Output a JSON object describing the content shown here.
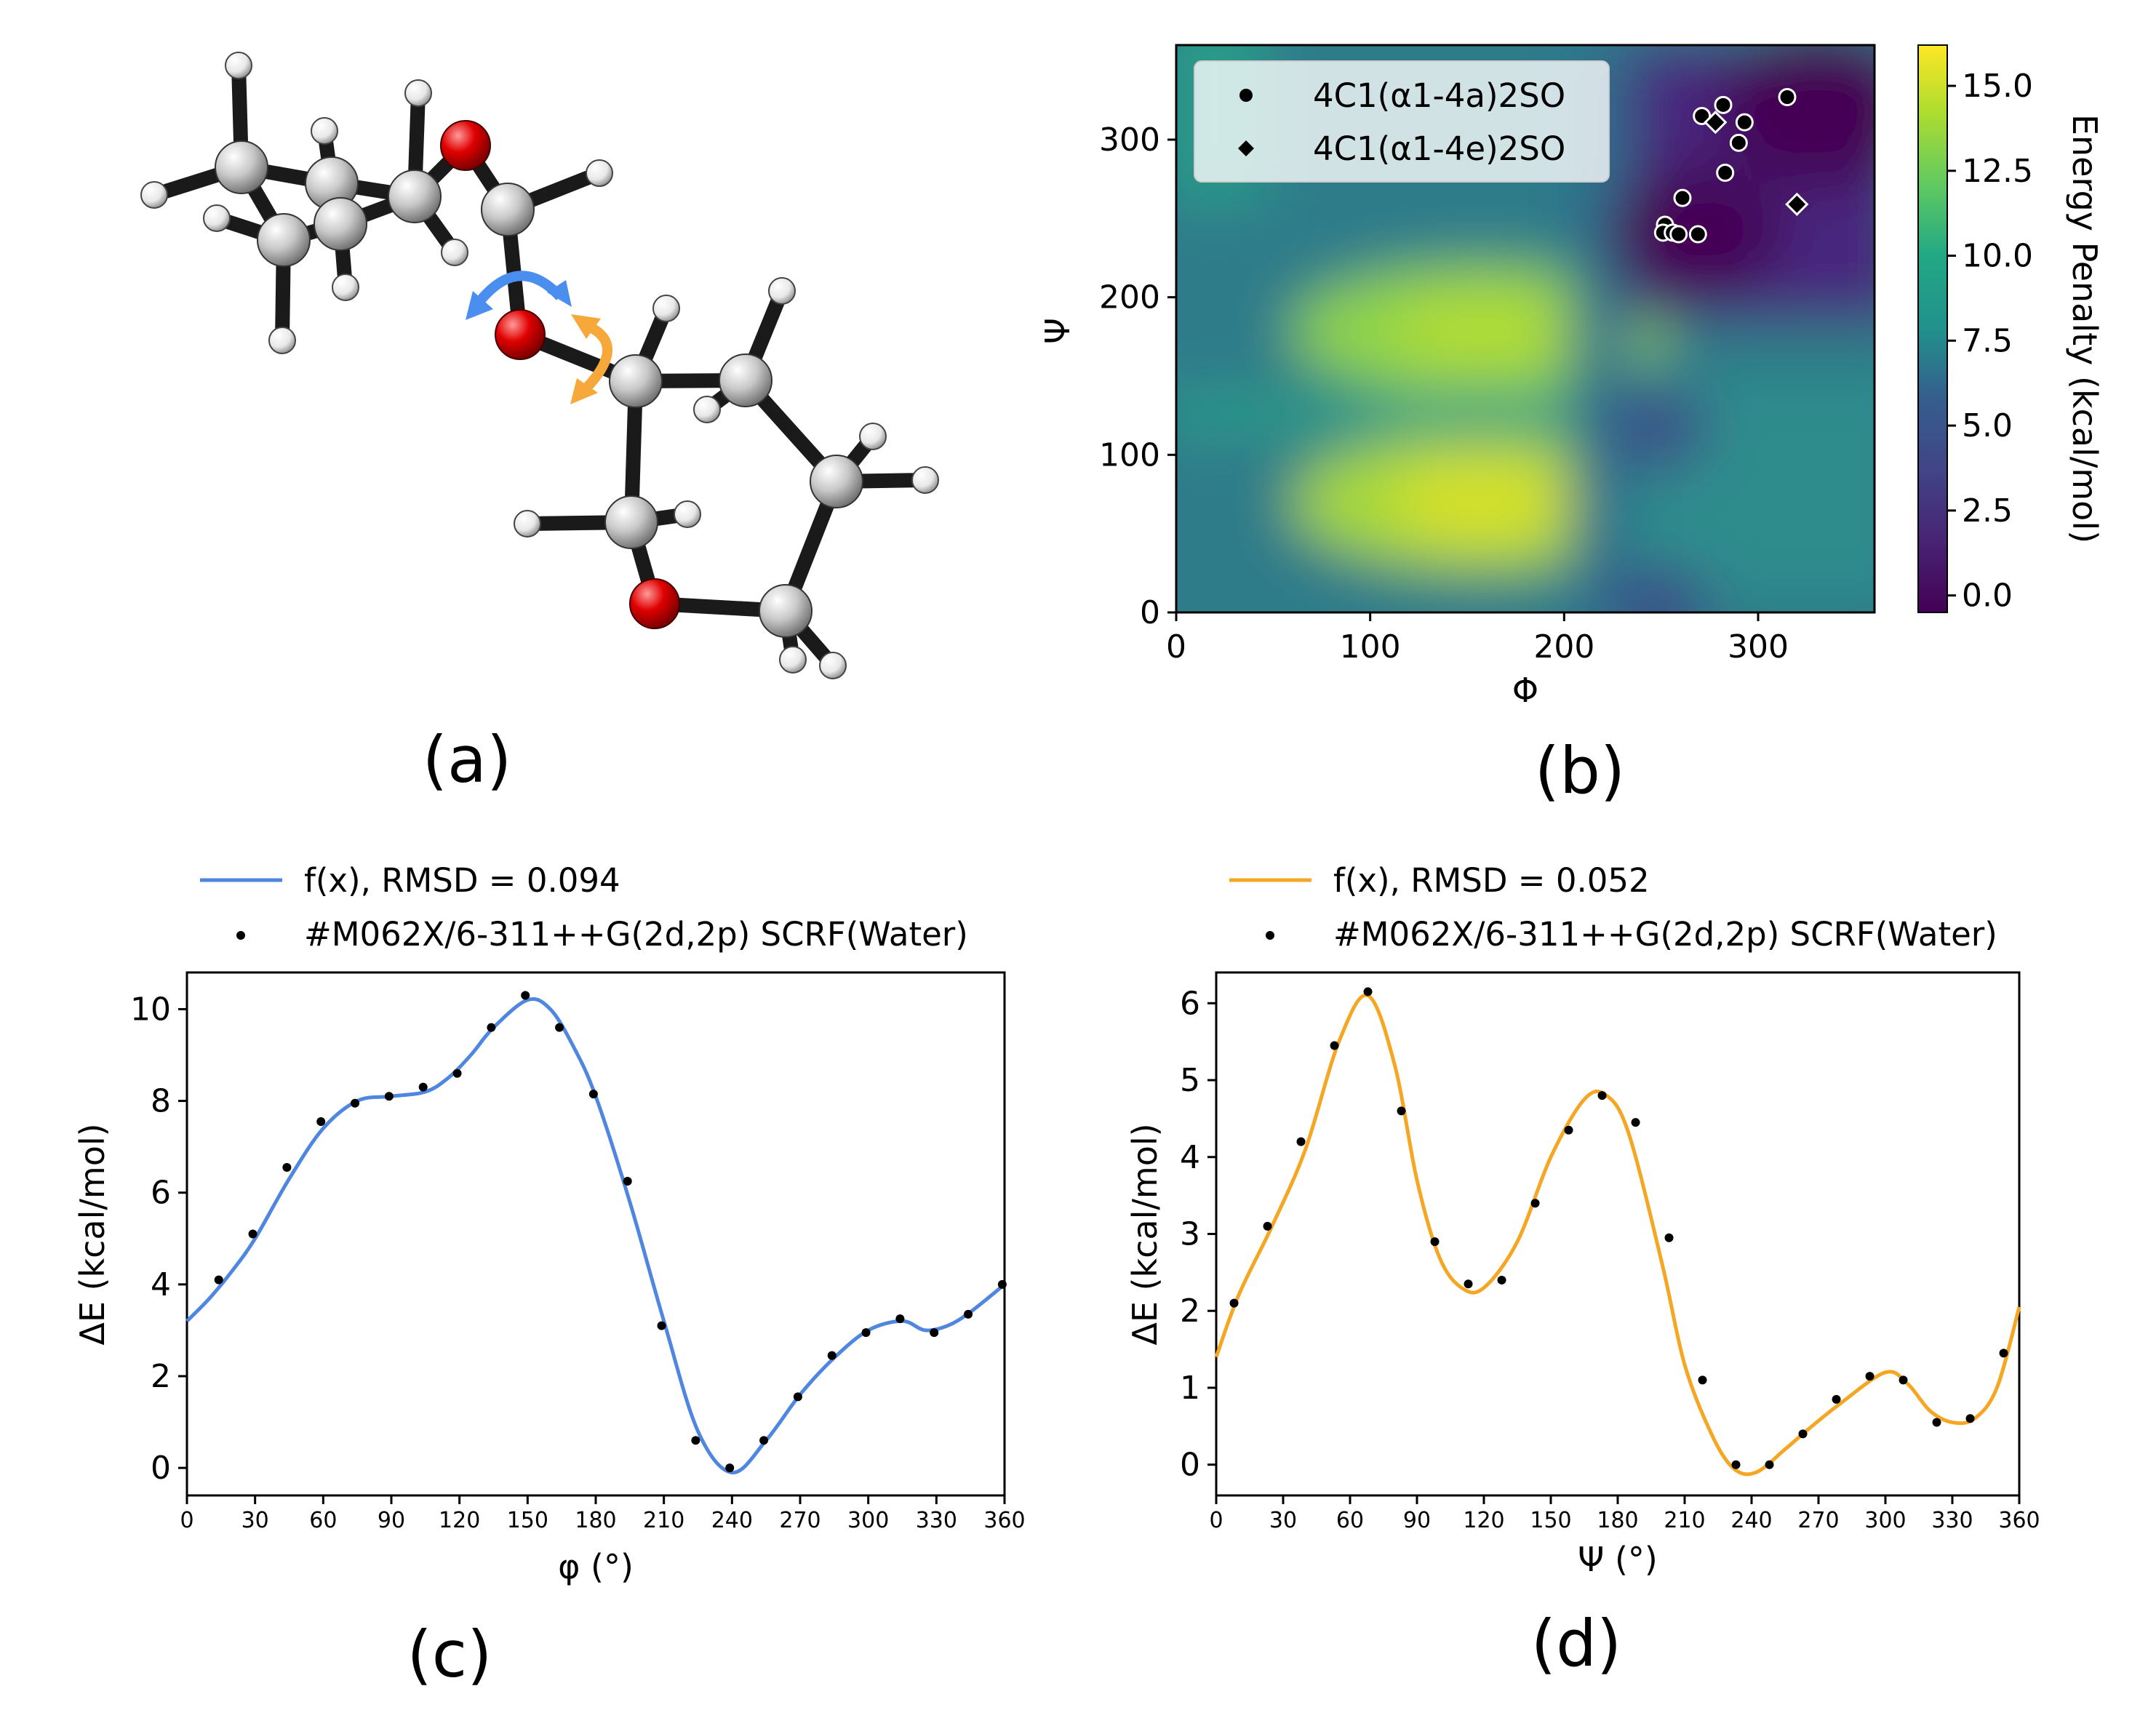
{
  "panels": {
    "a": "(a)",
    "b": "(b)",
    "c": "(c)",
    "d": "(d)"
  },
  "colors": {
    "phi_curve": "#4f86e0",
    "psi_curve": "#f5a623",
    "oxygen": "#e00000",
    "carbon": "#c8c8c8",
    "bond": "#1a1a1a",
    "arrow_blue": "#4a8ef0",
    "arrow_orange": "#f6a83a"
  },
  "molecule": {
    "icon": "molecule-3d-ball-and-stick"
  },
  "chart_data": [
    {
      "id": "b",
      "type": "heatmap",
      "xlabel": "Φ",
      "ylabel": "Ψ",
      "xlim": [
        0,
        360
      ],
      "ylim": [
        0,
        360
      ],
      "xticks": [
        "0",
        "100",
        "200",
        "300"
      ],
      "yticks": [
        "0",
        "100",
        "200",
        "300"
      ],
      "colorbar": {
        "label": "Energy Penalty (kcal/mol)",
        "range": [
          -0.5,
          16.2
        ],
        "ticks": [
          "0.0",
          "2.5",
          "5.0",
          "7.5",
          "10.0",
          "12.5",
          "15.0"
        ],
        "colormap": "viridis"
      },
      "legend": {
        "placement": "top-left",
        "entries": [
          "4C1(α1-4a)2SO",
          "4C1(α1-4e)2SO"
        ]
      },
      "series": [
        {
          "name": "4C1(α1-4a)2SO",
          "marker": "circle",
          "points": [
            [
              315,
              327
            ],
            [
              282,
              322
            ],
            [
              271,
              315
            ],
            [
              293,
              311
            ],
            [
              290,
              298
            ],
            [
              283,
              279
            ],
            [
              261,
              263
            ],
            [
              252,
              246
            ],
            [
              251,
              241
            ],
            [
              256,
              241
            ],
            [
              259,
              240
            ],
            [
              269,
              240
            ]
          ]
        },
        {
          "name": "4C1(α1-4e)2SO",
          "marker": "diamond",
          "points": [
            [
              278,
              311
            ],
            [
              320,
              259
            ]
          ]
        }
      ]
    },
    {
      "id": "c",
      "type": "line",
      "xlabel": "φ (°)",
      "ylabel": "ΔE (kcal/mol)",
      "xlim": [
        0,
        360
      ],
      "ylim": [
        -0.6,
        10.8
      ],
      "xticks": [
        "0",
        "30",
        "60",
        "90",
        "120",
        "150",
        "180",
        "210",
        "240",
        "270",
        "300",
        "330",
        "360"
      ],
      "yticks": [
        "0",
        "2",
        "4",
        "6",
        "8",
        "10"
      ],
      "legend": {
        "placement": "top",
        "entries": [
          "f(x), RMSD = 0.094",
          "#M062X/6-311++G(2d,2p) SCRF(Water)"
        ]
      },
      "series": [
        {
          "name": "f(x), RMSD = 0.094",
          "x": [
            0,
            10,
            20,
            30,
            45,
            60,
            75,
            90,
            105,
            115,
            125,
            135,
            150,
            160,
            170,
            180,
            195,
            210,
            225,
            240,
            255,
            270,
            285,
            300,
            315,
            325,
            335,
            345,
            360
          ],
          "y": [
            3.2,
            3.7,
            4.3,
            5.0,
            6.3,
            7.4,
            8.0,
            8.1,
            8.2,
            8.5,
            9.0,
            9.6,
            10.2,
            10.0,
            9.2,
            8.1,
            5.8,
            3.2,
            0.8,
            -0.1,
            0.6,
            1.6,
            2.4,
            3.0,
            3.2,
            3.0,
            3.1,
            3.4,
            4.0
          ]
        },
        {
          "name": "#M062X/6-311++G(2d,2p) SCRF(Water)",
          "x": [
            14,
            29,
            44,
            59,
            74,
            89,
            104,
            119,
            134,
            149,
            164,
            179,
            194,
            209,
            224,
            239,
            254,
            269,
            284,
            299,
            314,
            329,
            344,
            359
          ],
          "y": [
            4.1,
            5.1,
            6.55,
            7.55,
            7.95,
            8.1,
            8.3,
            8.6,
            9.6,
            10.3,
            9.6,
            8.15,
            6.25,
            3.1,
            0.6,
            0.0,
            0.6,
            1.55,
            2.45,
            2.95,
            3.25,
            2.95,
            3.35,
            4.0
          ]
        }
      ]
    },
    {
      "id": "d",
      "type": "line",
      "xlabel": "Ψ (°)",
      "ylabel": "ΔE (kcal/mol)",
      "xlim": [
        0,
        360
      ],
      "ylim": [
        -0.4,
        6.4
      ],
      "xticks": [
        "0",
        "30",
        "60",
        "90",
        "120",
        "150",
        "180",
        "210",
        "240",
        "270",
        "300",
        "330",
        "360"
      ],
      "yticks": [
        "0",
        "1",
        "2",
        "3",
        "4",
        "5",
        "6"
      ],
      "legend": {
        "placement": "top",
        "entries": [
          "f(x), RMSD = 0.052",
          "#M062X/6-311++G(2d,2p) SCRF(Water)"
        ]
      },
      "series": [
        {
          "name": "f(x), RMSD = 0.052",
          "x": [
            0,
            10,
            25,
            40,
            55,
            68,
            80,
            90,
            100,
            110,
            120,
            135,
            150,
            165,
            175,
            185,
            200,
            210,
            222,
            232,
            242,
            255,
            265,
            280,
            300,
            310,
            320,
            330,
            340,
            350,
            360
          ],
          "y": [
            1.4,
            2.2,
            3.1,
            4.1,
            5.5,
            6.1,
            5.2,
            3.7,
            2.7,
            2.3,
            2.3,
            2.9,
            4.0,
            4.75,
            4.8,
            4.3,
            2.6,
            1.3,
            0.4,
            -0.05,
            -0.1,
            0.2,
            0.45,
            0.8,
            1.2,
            1.05,
            0.7,
            0.55,
            0.6,
            1.0,
            2.05
          ]
        },
        {
          "name": "#M062X/6-311++G(2d,2p) SCRF(Water)",
          "x": [
            8,
            23,
            38,
            53,
            68,
            83,
            98,
            113,
            128,
            143,
            158,
            173,
            188,
            203,
            218,
            233,
            248,
            263,
            278,
            293,
            308,
            323,
            338,
            353
          ],
          "y": [
            2.1,
            3.1,
            4.2,
            5.45,
            6.15,
            4.6,
            2.9,
            2.35,
            2.4,
            3.4,
            4.35,
            4.8,
            4.45,
            2.95,
            1.1,
            0.0,
            0.0,
            0.4,
            0.85,
            1.15,
            1.1,
            0.55,
            0.6,
            1.45
          ]
        }
      ]
    }
  ]
}
